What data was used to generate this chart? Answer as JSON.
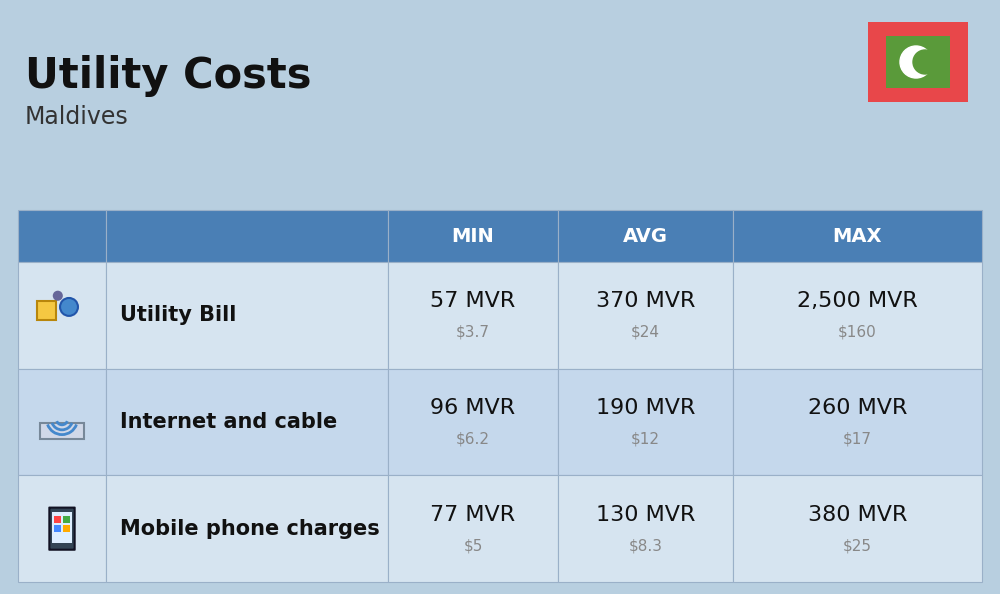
{
  "title": "Utility Costs",
  "subtitle": "Maldives",
  "background_color": "#b8cfe0",
  "header_color": "#4a7fb5",
  "header_text_color": "#ffffff",
  "row_color_odd": "#d6e4f0",
  "row_color_even": "#c5d8ec",
  "icon_col_bg": "#b8cfe0",
  "columns": [
    "MIN",
    "AVG",
    "MAX"
  ],
  "rows": [
    {
      "label": "Utility Bill",
      "min_mvr": "57 MVR",
      "min_usd": "$3.7",
      "avg_mvr": "370 MVR",
      "avg_usd": "$24",
      "max_mvr": "2,500 MVR",
      "max_usd": "$160"
    },
    {
      "label": "Internet and cable",
      "min_mvr": "96 MVR",
      "min_usd": "$6.2",
      "avg_mvr": "190 MVR",
      "avg_usd": "$12",
      "max_mvr": "260 MVR",
      "max_usd": "$17"
    },
    {
      "label": "Mobile phone charges",
      "min_mvr": "77 MVR",
      "min_usd": "$5",
      "avg_mvr": "130 MVR",
      "avg_usd": "$8.3",
      "max_mvr": "380 MVR",
      "max_usd": "$25"
    }
  ],
  "flag_red": "#e8474a",
  "flag_green": "#5a9a3a",
  "title_fontsize": 30,
  "subtitle_fontsize": 17,
  "header_fontsize": 14,
  "mvr_fontsize": 16,
  "usd_fontsize": 11,
  "label_fontsize": 15
}
